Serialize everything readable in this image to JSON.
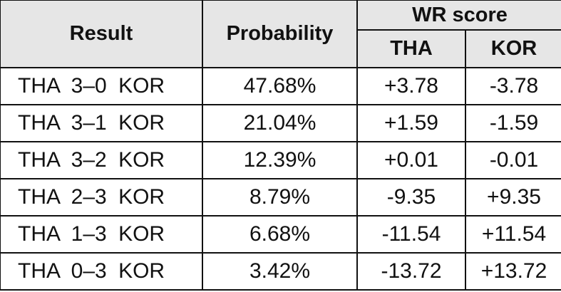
{
  "table": {
    "header": {
      "result": "Result",
      "probability": "Probability",
      "group": "WR score",
      "tha": "THA",
      "kor": "KOR"
    },
    "rows": [
      [
        "THA 3–0 KOR",
        "47.68%",
        "+3.78",
        "-3.78"
      ],
      [
        "THA 3–1 KOR",
        "21.04%",
        "+1.59",
        "-1.59"
      ],
      [
        "THA 3–2 KOR",
        "12.39%",
        "+0.01",
        "-0.01"
      ],
      [
        "THA 2–3 KOR",
        "8.79%",
        "-9.35",
        "+9.35"
      ],
      [
        "THA 1–3 KOR",
        "6.68%",
        "-11.54",
        "+11.54"
      ],
      [
        "THA 0–3 KOR",
        "3.42%",
        "-13.72",
        "+13.72"
      ]
    ]
  }
}
